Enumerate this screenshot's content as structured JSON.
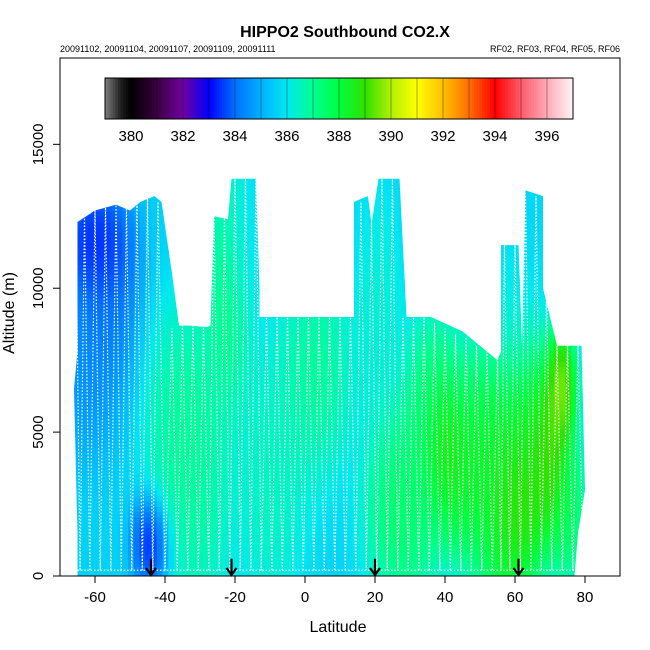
{
  "chart_data": {
    "type": "heatmap",
    "title": "HIPPO2 Southbound CO2.X",
    "subtitle_left": "20091102, 20091104, 20091107, 20091109, 20091111",
    "subtitle_right": "RF02, RF03, RF04, RF05, RF06",
    "xlabel": "Latitude",
    "ylabel": "Altitude (m)",
    "xlim": [
      -70,
      90
    ],
    "ylim": [
      0,
      18000
    ],
    "xticks": [
      -60,
      -40,
      -20,
      0,
      20,
      40,
      60,
      80
    ],
    "yticks": [
      0,
      5000,
      10000,
      15000
    ],
    "colorbar": {
      "range": [
        379,
        397
      ],
      "ticks": [
        380,
        382,
        384,
        386,
        388,
        390,
        392,
        394,
        396
      ],
      "stops": [
        {
          "v": 379.0,
          "c": "#808080"
        },
        {
          "v": 379.6,
          "c": "#202020"
        },
        {
          "v": 380.0,
          "c": "#000000"
        },
        {
          "v": 381.0,
          "c": "#3a0040"
        },
        {
          "v": 382.0,
          "c": "#7000a0"
        },
        {
          "v": 383.0,
          "c": "#0000ff"
        },
        {
          "v": 384.0,
          "c": "#0070ff"
        },
        {
          "v": 385.0,
          "c": "#00b0ff"
        },
        {
          "v": 386.0,
          "c": "#00e8f0"
        },
        {
          "v": 387.0,
          "c": "#00ff90"
        },
        {
          "v": 388.0,
          "c": "#00ff40"
        },
        {
          "v": 389.0,
          "c": "#30e000"
        },
        {
          "v": 390.0,
          "c": "#b0f000"
        },
        {
          "v": 391.0,
          "c": "#ffff00"
        },
        {
          "v": 392.0,
          "c": "#ffc000"
        },
        {
          "v": 393.0,
          "c": "#ff7000"
        },
        {
          "v": 394.0,
          "c": "#ff0000"
        },
        {
          "v": 395.0,
          "c": "#ff5a6a"
        },
        {
          "v": 396.0,
          "c": "#ffaab8"
        },
        {
          "v": 397.0,
          "c": "#fff4f6"
        }
      ]
    },
    "coverage_envelope": [
      [
        -65,
        0
      ],
      [
        -65,
        1500
      ],
      [
        -66,
        6500
      ],
      [
        -65,
        7800
      ],
      [
        -65,
        12300
      ],
      [
        -60,
        12700
      ],
      [
        -54,
        12900
      ],
      [
        -50,
        12700
      ],
      [
        -47,
        13000
      ],
      [
        -43,
        13200
      ],
      [
        -41,
        13000
      ],
      [
        -38,
        10500
      ],
      [
        -36,
        8700
      ],
      [
        -33,
        8700
      ],
      [
        -28,
        8650
      ],
      [
        -27,
        8700
      ],
      [
        -26,
        12500
      ],
      [
        -22,
        12400
      ],
      [
        -21,
        13800
      ],
      [
        -14,
        13800
      ],
      [
        -13,
        10000
      ],
      [
        -13,
        9000
      ],
      [
        14,
        9000
      ],
      [
        14,
        13000
      ],
      [
        18,
        13200
      ],
      [
        19,
        12200
      ],
      [
        21,
        13800
      ],
      [
        27,
        13800
      ],
      [
        29,
        9000
      ],
      [
        36,
        9000
      ],
      [
        45,
        8500
      ],
      [
        55,
        7500
      ],
      [
        56,
        7800
      ],
      [
        56,
        11500
      ],
      [
        61,
        11500
      ],
      [
        62,
        8000
      ],
      [
        63,
        13400
      ],
      [
        68,
        13200
      ],
      [
        68,
        10000
      ],
      [
        72,
        8000
      ],
      [
        79,
        8000
      ],
      [
        80,
        3000
      ],
      [
        78,
        1500
      ],
      [
        77,
        0
      ]
    ],
    "field_patches": [
      {
        "x": -60,
        "alt": 11500,
        "value": 382.6,
        "sx": 6,
        "sy": 1200
      },
      {
        "x": -57,
        "alt": 9800,
        "value": 383.6,
        "sx": 5,
        "sy": 1600
      },
      {
        "x": -62,
        "alt": 7500,
        "value": 384.2,
        "sx": 6,
        "sy": 1800
      },
      {
        "x": -44,
        "alt": 1200,
        "value": 382.5,
        "sx": 3,
        "sy": 900
      },
      {
        "x": -35,
        "alt": 5000,
        "value": 387.3,
        "sx": 6,
        "sy": 2500
      },
      {
        "x": -30,
        "alt": 3000,
        "value": 387.0,
        "sx": 5,
        "sy": 2500
      },
      {
        "x": -22,
        "alt": 10000,
        "value": 387.6,
        "sx": 4,
        "sy": 2500
      },
      {
        "x": -10,
        "alt": 3500,
        "value": 386.8,
        "sx": 6,
        "sy": 2500
      },
      {
        "x": 3,
        "alt": 7000,
        "value": 387.3,
        "sx": 6,
        "sy": 2000
      },
      {
        "x": 28,
        "alt": 2500,
        "value": 388.0,
        "sx": 6,
        "sy": 2000
      },
      {
        "x": 37,
        "alt": 5500,
        "value": 388.0,
        "sx": 5,
        "sy": 2000
      },
      {
        "x": 40,
        "alt": 4500,
        "value": 389.6,
        "sx": 3,
        "sy": 1200
      },
      {
        "x": 45,
        "alt": 3500,
        "value": 389.0,
        "sx": 5,
        "sy": 1500
      },
      {
        "x": 52,
        "alt": 4500,
        "value": 388.5,
        "sx": 6,
        "sy": 2000
      },
      {
        "x": 58,
        "alt": 2500,
        "value": 389.3,
        "sx": 5,
        "sy": 2500
      },
      {
        "x": 62,
        "alt": 2500,
        "value": 389.6,
        "sx": 4,
        "sy": 1200
      },
      {
        "x": 65,
        "alt": 5000,
        "value": 389.0,
        "sx": 4,
        "sy": 2000
      },
      {
        "x": 70,
        "alt": 4200,
        "value": 390.3,
        "sx": 3,
        "sy": 1600
      },
      {
        "x": 73,
        "alt": 6500,
        "value": 390.8,
        "sx": 2.5,
        "sy": 1200
      },
      {
        "x": 75,
        "alt": 2500,
        "value": 388.2,
        "sx": 3,
        "sy": 1500
      },
      {
        "x": 60,
        "alt": 9000,
        "value": 386.3,
        "sx": 5,
        "sy": 1500
      },
      {
        "x": 21,
        "alt": 9000,
        "value": 386.5,
        "sx": 4,
        "sy": 2500
      },
      {
        "x": -17,
        "alt": 11500,
        "value": 385.8,
        "sx": 4,
        "sy": 1500
      },
      {
        "x": 65,
        "alt": 11500,
        "value": 385.7,
        "sx": 4,
        "sy": 1500
      }
    ],
    "field_background": 385.6,
    "profile_tops": [
      {
        "x": -65.5,
        "top": 12400
      },
      {
        "x": -63,
        "top": 12500
      },
      {
        "x": -60,
        "top": 12700
      },
      {
        "x": -57,
        "top": 12800
      },
      {
        "x": -54,
        "top": 12900
      },
      {
        "x": -51,
        "top": 12800
      },
      {
        "x": -48,
        "top": 13000
      },
      {
        "x": -45,
        "top": 13100
      },
      {
        "x": -42,
        "top": 13000
      },
      {
        "x": -38,
        "top": 8600
      },
      {
        "x": -35,
        "top": 8700
      },
      {
        "x": -32,
        "top": 8700
      },
      {
        "x": -29,
        "top": 8650
      },
      {
        "x": -26,
        "top": 12600
      },
      {
        "x": -23,
        "top": 12500
      },
      {
        "x": -20,
        "top": 13800
      },
      {
        "x": -17,
        "top": 13800
      },
      {
        "x": -14,
        "top": 13800
      },
      {
        "x": -11,
        "top": 9000
      },
      {
        "x": -8,
        "top": 9000
      },
      {
        "x": -5,
        "top": 9000
      },
      {
        "x": -2,
        "top": 9000
      },
      {
        "x": 1,
        "top": 9000
      },
      {
        "x": 4,
        "top": 9000
      },
      {
        "x": 7,
        "top": 9000
      },
      {
        "x": 10,
        "top": 9000
      },
      {
        "x": 13,
        "top": 9000
      },
      {
        "x": 16,
        "top": 13000
      },
      {
        "x": 19,
        "top": 12300
      },
      {
        "x": 22,
        "top": 13800
      },
      {
        "x": 25,
        "top": 13800
      },
      {
        "x": 28,
        "top": 9000
      },
      {
        "x": 31,
        "top": 9000
      },
      {
        "x": 34,
        "top": 9000
      },
      {
        "x": 37,
        "top": 8800
      },
      {
        "x": 40,
        "top": 8600
      },
      {
        "x": 43,
        "top": 8400
      },
      {
        "x": 46,
        "top": 8300
      },
      {
        "x": 49,
        "top": 8000
      },
      {
        "x": 52,
        "top": 7800
      },
      {
        "x": 55,
        "top": 7600
      },
      {
        "x": 57,
        "top": 11500
      },
      {
        "x": 60,
        "top": 11500
      },
      {
        "x": 63,
        "top": 13300
      },
      {
        "x": 66,
        "top": 13200
      },
      {
        "x": 69,
        "top": 10000
      },
      {
        "x": 72,
        "top": 8000
      },
      {
        "x": 75,
        "top": 8000
      },
      {
        "x": 78,
        "top": 8000
      }
    ],
    "profile_bottom": 200,
    "arrows": [
      -44,
      -21,
      20,
      61
    ]
  }
}
